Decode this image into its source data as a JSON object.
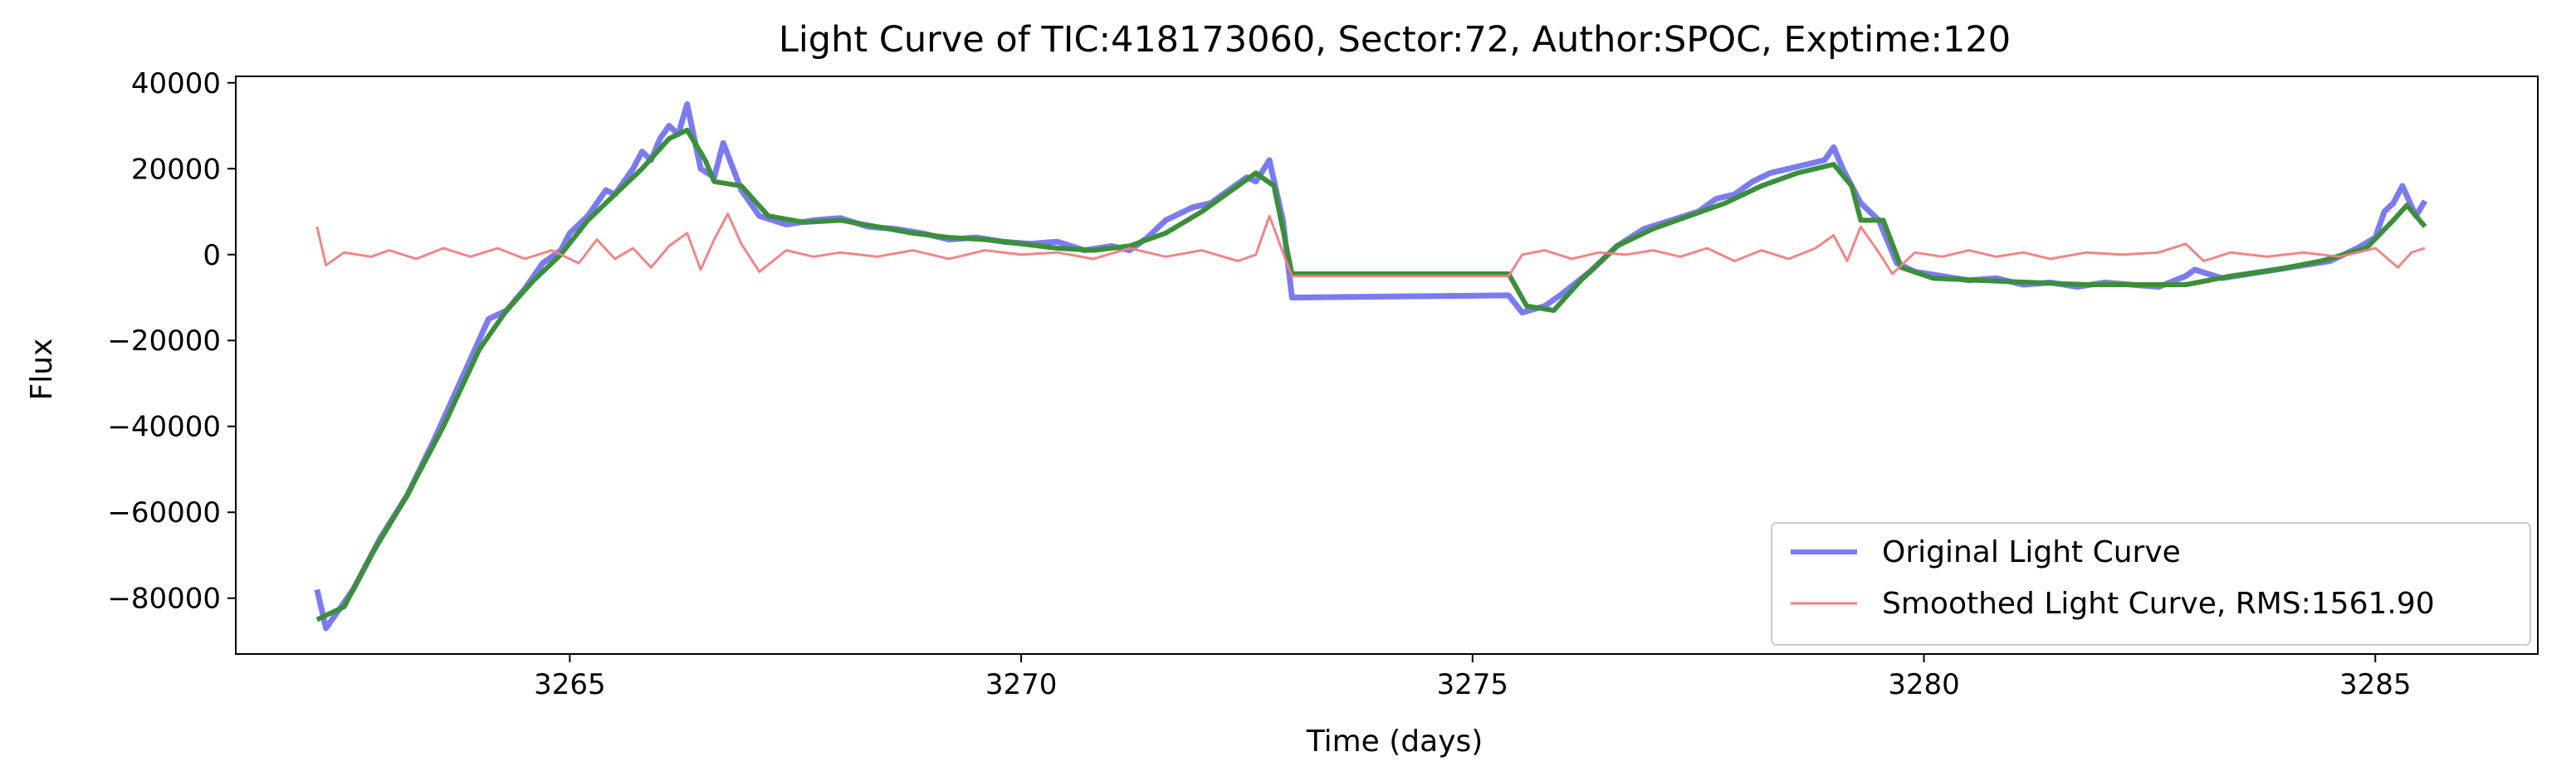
{
  "chart_data": {
    "type": "line",
    "title": "Light Curve of TIC:418173060, Sector:72, Author:SPOC, Exptime:120",
    "xlabel": "Time (days)",
    "ylabel": "Flux",
    "xlim": [
      3261.3,
      3286.8
    ],
    "ylim": [
      -93000,
      41500
    ],
    "xticks": [
      3265,
      3270,
      3275,
      3280,
      3285
    ],
    "yticks": [
      40000,
      20000,
      0,
      -20000,
      -40000,
      -60000,
      -80000
    ],
    "ytick_labels": [
      "40000",
      "20000",
      "0",
      "−20000",
      "−40000",
      "−60000",
      "−80000"
    ],
    "grid": false,
    "legend_position": "lower-right",
    "series": [
      {
        "name": "Original Light Curve",
        "color": "#7b7bf0",
        "points": [
          [
            3262.2,
            -78000
          ],
          [
            3262.3,
            -87000
          ],
          [
            3262.6,
            -78000
          ],
          [
            3262.9,
            -66000
          ],
          [
            3263.2,
            -56000
          ],
          [
            3263.5,
            -43000
          ],
          [
            3263.8,
            -29000
          ],
          [
            3264.1,
            -15000
          ],
          [
            3264.3,
            -13000
          ],
          [
            3264.5,
            -8000
          ],
          [
            3264.7,
            -2000
          ],
          [
            3264.9,
            1000
          ],
          [
            3265.0,
            5000
          ],
          [
            3265.2,
            9000
          ],
          [
            3265.4,
            15000
          ],
          [
            3265.5,
            14000
          ],
          [
            3265.7,
            20000
          ],
          [
            3265.8,
            24000
          ],
          [
            3265.9,
            22000
          ],
          [
            3266.0,
            27000
          ],
          [
            3266.1,
            30000
          ],
          [
            3266.2,
            28000
          ],
          [
            3266.3,
            35000
          ],
          [
            3266.45,
            20000
          ],
          [
            3266.6,
            18000
          ],
          [
            3266.7,
            26000
          ],
          [
            3266.9,
            15000
          ],
          [
            3267.1,
            9000
          ],
          [
            3267.4,
            7000
          ],
          [
            3267.7,
            8000
          ],
          [
            3268.0,
            8500
          ],
          [
            3268.3,
            6500
          ],
          [
            3268.6,
            6000
          ],
          [
            3268.9,
            5000
          ],
          [
            3269.2,
            3500
          ],
          [
            3269.5,
            4000
          ],
          [
            3269.8,
            3000
          ],
          [
            3270.1,
            2500
          ],
          [
            3270.4,
            3000
          ],
          [
            3270.7,
            1000
          ],
          [
            3271.0,
            2000
          ],
          [
            3271.2,
            1000
          ],
          [
            3271.4,
            4000
          ],
          [
            3271.6,
            8000
          ],
          [
            3271.9,
            11000
          ],
          [
            3272.1,
            12000
          ],
          [
            3272.3,
            15000
          ],
          [
            3272.5,
            18000
          ],
          [
            3272.6,
            17000
          ],
          [
            3272.75,
            22000
          ],
          [
            3272.9,
            8000
          ],
          [
            3273.0,
            -10000
          ],
          [
            3275.4,
            -9500
          ],
          [
            3275.55,
            -13500
          ],
          [
            3275.8,
            -12000
          ],
          [
            3276.0,
            -9000
          ],
          [
            3276.3,
            -4000
          ],
          [
            3276.6,
            2000
          ],
          [
            3276.9,
            6000
          ],
          [
            3277.2,
            8000
          ],
          [
            3277.5,
            10000
          ],
          [
            3277.7,
            13000
          ],
          [
            3277.9,
            14000
          ],
          [
            3278.1,
            17000
          ],
          [
            3278.3,
            19000
          ],
          [
            3278.5,
            20000
          ],
          [
            3278.7,
            21000
          ],
          [
            3278.9,
            22000
          ],
          [
            3279.0,
            25000
          ],
          [
            3279.1,
            20000
          ],
          [
            3279.3,
            12000
          ],
          [
            3279.5,
            8000
          ],
          [
            3279.7,
            -2000
          ],
          [
            3279.9,
            -4000
          ],
          [
            3280.2,
            -5000
          ],
          [
            3280.5,
            -6000
          ],
          [
            3280.8,
            -5500
          ],
          [
            3281.1,
            -7000
          ],
          [
            3281.4,
            -6500
          ],
          [
            3281.7,
            -7500
          ],
          [
            3282.0,
            -6500
          ],
          [
            3282.3,
            -7000
          ],
          [
            3282.6,
            -7500
          ],
          [
            3282.9,
            -5000
          ],
          [
            3283.0,
            -3500
          ],
          [
            3283.3,
            -5500
          ],
          [
            3283.6,
            -4500
          ],
          [
            3283.9,
            -3500
          ],
          [
            3284.2,
            -2500
          ],
          [
            3284.5,
            -1500
          ],
          [
            3284.8,
            1500
          ],
          [
            3285.0,
            4000
          ],
          [
            3285.1,
            10000
          ],
          [
            3285.2,
            12000
          ],
          [
            3285.3,
            16000
          ],
          [
            3285.45,
            9000
          ],
          [
            3285.55,
            12500
          ]
        ]
      },
      {
        "name": "Smoothed Light Curve, RMS:1561.90",
        "color": "#f08080",
        "points": [
          [
            3262.2,
            6500
          ],
          [
            3262.3,
            -2500
          ],
          [
            3262.5,
            500
          ],
          [
            3262.8,
            -500
          ],
          [
            3263.0,
            1000
          ],
          [
            3263.3,
            -1000
          ],
          [
            3263.6,
            1500
          ],
          [
            3263.9,
            -500
          ],
          [
            3264.2,
            1500
          ],
          [
            3264.5,
            -1000
          ],
          [
            3264.8,
            1000
          ],
          [
            3265.1,
            -2000
          ],
          [
            3265.3,
            3500
          ],
          [
            3265.5,
            -1000
          ],
          [
            3265.7,
            1500
          ],
          [
            3265.9,
            -3000
          ],
          [
            3266.1,
            2000
          ],
          [
            3266.3,
            5000
          ],
          [
            3266.45,
            -3500
          ],
          [
            3266.6,
            3500
          ],
          [
            3266.75,
            9500
          ],
          [
            3266.9,
            2500
          ],
          [
            3267.1,
            -4000
          ],
          [
            3267.4,
            1000
          ],
          [
            3267.7,
            -500
          ],
          [
            3268.0,
            500
          ],
          [
            3268.4,
            -500
          ],
          [
            3268.8,
            1000
          ],
          [
            3269.2,
            -1000
          ],
          [
            3269.6,
            1000
          ],
          [
            3270.0,
            0
          ],
          [
            3270.4,
            500
          ],
          [
            3270.8,
            -1000
          ],
          [
            3271.2,
            1500
          ],
          [
            3271.6,
            -500
          ],
          [
            3272.0,
            1000
          ],
          [
            3272.4,
            -1500
          ],
          [
            3272.6,
            0
          ],
          [
            3272.75,
            9000
          ],
          [
            3272.9,
            500
          ],
          [
            3273.0,
            -5000
          ],
          [
            3275.4,
            -5000
          ],
          [
            3275.55,
            0
          ],
          [
            3275.8,
            1000
          ],
          [
            3276.1,
            -1000
          ],
          [
            3276.4,
            500
          ],
          [
            3276.7,
            0
          ],
          [
            3277.0,
            1000
          ],
          [
            3277.3,
            -500
          ],
          [
            3277.6,
            1500
          ],
          [
            3277.9,
            -1500
          ],
          [
            3278.2,
            1000
          ],
          [
            3278.5,
            -1000
          ],
          [
            3278.8,
            1500
          ],
          [
            3279.0,
            4500
          ],
          [
            3279.15,
            -1500
          ],
          [
            3279.3,
            6500
          ],
          [
            3279.5,
            500
          ],
          [
            3279.65,
            -4500
          ],
          [
            3279.9,
            500
          ],
          [
            3280.2,
            -500
          ],
          [
            3280.5,
            1000
          ],
          [
            3280.8,
            -500
          ],
          [
            3281.1,
            500
          ],
          [
            3281.4,
            -1000
          ],
          [
            3281.8,
            500
          ],
          [
            3282.2,
            0
          ],
          [
            3282.6,
            500
          ],
          [
            3282.9,
            2500
          ],
          [
            3283.1,
            -1500
          ],
          [
            3283.4,
            500
          ],
          [
            3283.8,
            -500
          ],
          [
            3284.2,
            500
          ],
          [
            3284.6,
            -500
          ],
          [
            3285.0,
            1500
          ],
          [
            3285.25,
            -3000
          ],
          [
            3285.4,
            500
          ],
          [
            3285.55,
            1500
          ]
        ]
      },
      {
        "name": "",
        "color": "#3b8f3b",
        "points": [
          [
            3262.2,
            -85000
          ],
          [
            3262.5,
            -82000
          ],
          [
            3262.8,
            -70000
          ],
          [
            3263.2,
            -56000
          ],
          [
            3263.6,
            -40000
          ],
          [
            3264.0,
            -22000
          ],
          [
            3264.3,
            -13000
          ],
          [
            3264.6,
            -6000
          ],
          [
            3264.9,
            0
          ],
          [
            3265.2,
            8000
          ],
          [
            3265.5,
            14000
          ],
          [
            3265.8,
            20000
          ],
          [
            3266.1,
            27000
          ],
          [
            3266.3,
            29000
          ],
          [
            3266.5,
            22000
          ],
          [
            3266.6,
            17000
          ],
          [
            3266.9,
            16000
          ],
          [
            3267.2,
            9000
          ],
          [
            3267.6,
            7500
          ],
          [
            3268.0,
            8000
          ],
          [
            3268.4,
            6500
          ],
          [
            3268.8,
            5000
          ],
          [
            3269.2,
            4000
          ],
          [
            3269.6,
            3500
          ],
          [
            3270.0,
            2500
          ],
          [
            3270.4,
            1500
          ],
          [
            3270.8,
            1000
          ],
          [
            3271.2,
            2000
          ],
          [
            3271.6,
            5000
          ],
          [
            3272.0,
            10000
          ],
          [
            3272.4,
            16000
          ],
          [
            3272.6,
            19000
          ],
          [
            3272.8,
            16000
          ],
          [
            3273.0,
            -4500
          ],
          [
            3275.4,
            -4500
          ],
          [
            3275.6,
            -12000
          ],
          [
            3275.9,
            -13000
          ],
          [
            3276.2,
            -6000
          ],
          [
            3276.6,
            2000
          ],
          [
            3277.0,
            6000
          ],
          [
            3277.4,
            9000
          ],
          [
            3277.8,
            12000
          ],
          [
            3278.2,
            16000
          ],
          [
            3278.6,
            19000
          ],
          [
            3279.0,
            21000
          ],
          [
            3279.2,
            16000
          ],
          [
            3279.3,
            8000
          ],
          [
            3279.55,
            8000
          ],
          [
            3279.75,
            -3000
          ],
          [
            3280.1,
            -5500
          ],
          [
            3280.6,
            -6000
          ],
          [
            3281.2,
            -6500
          ],
          [
            3281.8,
            -7000
          ],
          [
            3282.4,
            -7000
          ],
          [
            3282.9,
            -7000
          ],
          [
            3283.4,
            -5000
          ],
          [
            3283.9,
            -3500
          ],
          [
            3284.4,
            -1500
          ],
          [
            3284.9,
            1500
          ],
          [
            3285.2,
            8000
          ],
          [
            3285.35,
            11500
          ],
          [
            3285.55,
            6500
          ]
        ]
      }
    ]
  }
}
